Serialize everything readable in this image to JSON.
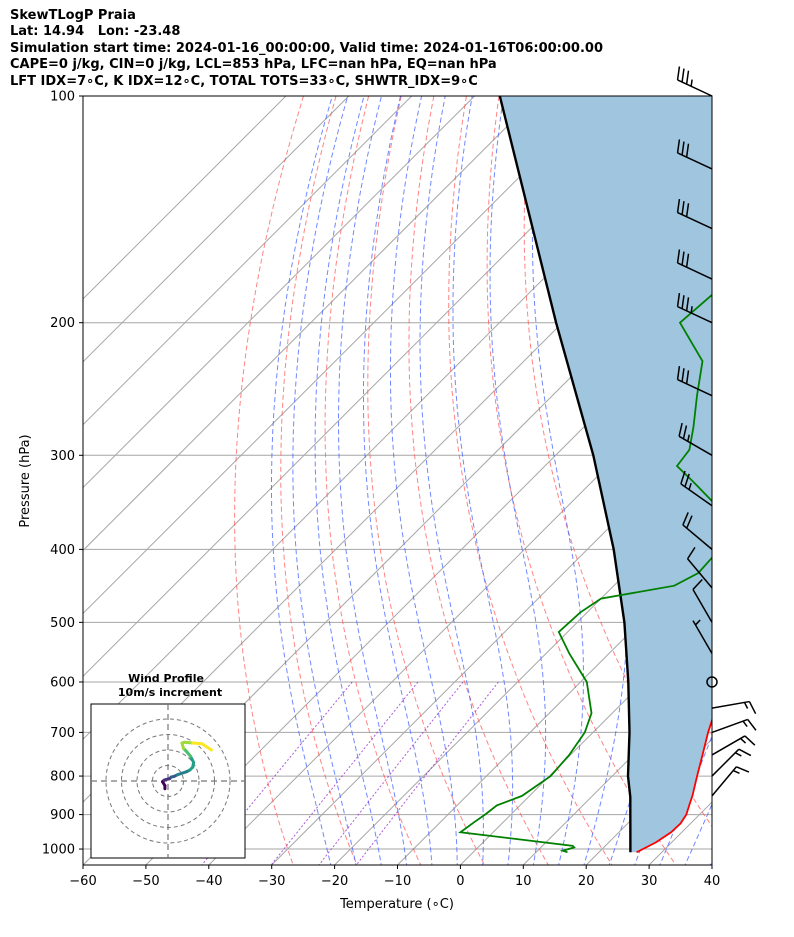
{
  "header": {
    "line1": "SkewTLogP Praia",
    "line2": "Lat: 14.94   Lon: -23.48",
    "line3": "Simulation start time: 2024-01-16_00:00:00, Valid time: 2024-01-16T06:00:00.00",
    "line4": "CAPE=0 j/kg, CIN=0 j/kg, LCL=853 hPa, LFC=nan hPa, EQ=nan hPa",
    "line5": "LFT IDX=7∘C, K IDX=12∘C, TOTAL TOTS=33∘C, SHWTR_IDX=9∘C"
  },
  "chart_data": {
    "type": "line",
    "subtype": "skew-t log-p",
    "xlabel": "Temperature (∘C)",
    "ylabel": "Pressure (hPa)",
    "xlim": [
      -60,
      40
    ],
    "ylim_hpa": [
      1050,
      100
    ],
    "log_y": true,
    "grid": true,
    "x_ticks": [
      "−60",
      "−50",
      "−40",
      "−30",
      "−20",
      "−10",
      "0",
      "10",
      "20",
      "30",
      "40"
    ],
    "x_tick_values": [
      -60,
      -50,
      -40,
      -30,
      -20,
      -10,
      0,
      10,
      20,
      30,
      40
    ],
    "y_ticks": [
      "100",
      "200",
      "300",
      "400",
      "500",
      "600",
      "700",
      "800",
      "900",
      "1000"
    ],
    "y_tick_values": [
      100,
      200,
      300,
      400,
      500,
      600,
      700,
      800,
      900,
      1000
    ],
    "colors": {
      "temperature": "#ff0000",
      "dewpoint": "#008000",
      "parcel": "#000000",
      "shading": "#a0c6df",
      "dry_adiabats": "#ff5050",
      "moist_adiabats": "#4060ff",
      "mixing_ratio": "#9933cc",
      "isotherms": "#a6a6a6"
    },
    "series": [
      {
        "key": "temperature",
        "points": [
          [
            1010,
            26
          ],
          [
            1000,
            26.5
          ],
          [
            980,
            27.5
          ],
          [
            950,
            28.3
          ],
          [
            925,
            28.4
          ],
          [
            900,
            27.9
          ],
          [
            875,
            26.9
          ],
          [
            850,
            25.9
          ],
          [
            800,
            23.5
          ],
          [
            750,
            21
          ],
          [
            700,
            18.3
          ],
          [
            650,
            15.7
          ],
          [
            600,
            13
          ],
          [
            550,
            10.3
          ],
          [
            500,
            7.2
          ],
          [
            450,
            3.8
          ],
          [
            425,
            2.1
          ],
          [
            400,
            0.7
          ],
          [
            375,
            -1.5
          ],
          [
            350,
            -3.5
          ],
          [
            325,
            -5.4
          ],
          [
            300,
            -8
          ],
          [
            275,
            -12.1
          ],
          [
            250,
            -16.3
          ],
          [
            225,
            -20.3
          ],
          [
            200,
            -24.5
          ],
          [
            175,
            -29.5
          ],
          [
            155,
            -33.4
          ],
          [
            145,
            -35.7
          ],
          [
            130,
            -38.5
          ],
          [
            120,
            -42.5
          ],
          [
            110,
            -46.6
          ],
          [
            100,
            -51.8
          ]
        ]
      },
      {
        "key": "dewpoint",
        "points": [
          [
            1010,
            15
          ],
          [
            1005,
            14
          ],
          [
            995,
            15.3
          ],
          [
            990,
            14.8
          ],
          [
            950,
            -5.2
          ],
          [
            920,
            -4.6
          ],
          [
            900,
            -4.1
          ],
          [
            875,
            -3.7
          ],
          [
            850,
            -1.2
          ],
          [
            800,
            0.2
          ],
          [
            750,
            -0.2
          ],
          [
            700,
            -1.3
          ],
          [
            660,
            -3.3
          ],
          [
            600,
            -9
          ],
          [
            550,
            -16.3
          ],
          [
            515,
            -21.4
          ],
          [
            485,
            -21.1
          ],
          [
            465,
            -20
          ],
          [
            447,
            -10.4
          ],
          [
            430,
            -8.6
          ],
          [
            400,
            -9
          ],
          [
            375,
            -11.9
          ],
          [
            350,
            -16.4
          ],
          [
            325,
            -24
          ],
          [
            310,
            -29
          ],
          [
            295,
            -29.6
          ],
          [
            275,
            -32.6
          ],
          [
            250,
            -37
          ],
          [
            225,
            -41.6
          ],
          [
            200,
            -51.3
          ],
          [
            185,
            -50.7
          ],
          [
            165,
            -49.6
          ],
          [
            140,
            -52.8
          ],
          [
            125,
            -54.6
          ],
          [
            110,
            -60.7
          ],
          [
            100,
            -62.4
          ]
        ]
      },
      {
        "key": "parcel",
        "points": [
          [
            1010,
            25
          ],
          [
            853,
            16.2
          ],
          [
            800,
            12.5
          ],
          [
            700,
            5.8
          ],
          [
            600,
            -2.4
          ],
          [
            500,
            -12.5
          ],
          [
            400,
            -25.8
          ],
          [
            300,
            -44
          ],
          [
            200,
            -71
          ],
          [
            100,
            -116
          ]
        ]
      }
    ],
    "wind_barbs": [
      {
        "p": 100,
        "speed_kt": 35,
        "dir": 295
      },
      {
        "p": 125,
        "speed_kt": 30,
        "dir": 295
      },
      {
        "p": 150,
        "speed_kt": 30,
        "dir": 295
      },
      {
        "p": 175,
        "speed_kt": 30,
        "dir": 295
      },
      {
        "p": 200,
        "speed_kt": 35,
        "dir": 295
      },
      {
        "p": 250,
        "speed_kt": 30,
        "dir": 295
      },
      {
        "p": 300,
        "speed_kt": 25,
        "dir": 300
      },
      {
        "p": 350,
        "speed_kt": 25,
        "dir": 305
      },
      {
        "p": 400,
        "speed_kt": 20,
        "dir": 310
      },
      {
        "p": 450,
        "speed_kt": 10,
        "dir": 320
      },
      {
        "p": 500,
        "speed_kt": 10,
        "dir": 330
      },
      {
        "p": 550,
        "speed_kt": 5,
        "dir": 330
      },
      {
        "p": 600,
        "speed_kt": 0,
        "dir": 0
      },
      {
        "p": 650,
        "speed_kt": 15,
        "dir": 80
      },
      {
        "p": 700,
        "speed_kt": 15,
        "dir": 70
      },
      {
        "p": 750,
        "speed_kt": 15,
        "dir": 60
      },
      {
        "p": 800,
        "speed_kt": 15,
        "dir": 45
      },
      {
        "p": 850,
        "speed_kt": 15,
        "dir": 40
      }
    ],
    "inset": {
      "type": "hodograph",
      "title_line1": "Wind Profile",
      "title_line2": "10m/s increment",
      "rings_ms": [
        10,
        20,
        30,
        40
      ],
      "track_uv": [
        [
          -2,
          -5
        ],
        [
          -2,
          -3
        ],
        [
          -3.5,
          -0.5
        ],
        [
          -2.5,
          0.5
        ],
        [
          -1,
          1
        ],
        [
          1,
          1.5
        ],
        [
          2,
          2.5
        ],
        [
          4,
          3
        ],
        [
          6,
          4
        ],
        [
          9,
          5
        ],
        [
          12,
          6
        ],
        [
          14,
          7
        ],
        [
          16,
          9
        ],
        [
          16.5,
          12
        ],
        [
          14.5,
          16
        ],
        [
          12,
          19
        ],
        [
          10,
          21
        ],
        [
          9,
          24.5
        ],
        [
          10.5,
          25
        ],
        [
          16,
          24.5
        ],
        [
          22,
          24
        ],
        [
          25,
          22
        ],
        [
          28,
          20
        ]
      ]
    }
  }
}
